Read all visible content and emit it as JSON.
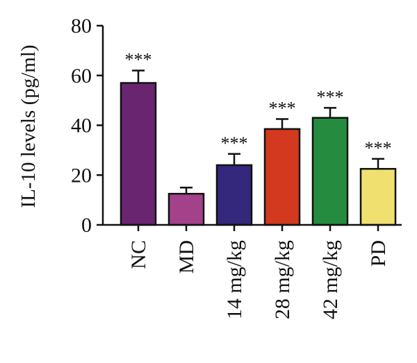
{
  "chart_data": {
    "type": "bar",
    "title": "",
    "xlabel": "",
    "ylabel": "IL-10 levels (pg/ml)",
    "ylim": [
      0,
      80
    ],
    "yticks": [
      0,
      20,
      40,
      60,
      80
    ],
    "categories": [
      "NC",
      "MD",
      "14 mg/kg",
      "28 mg/kg",
      "42 mg/kg",
      "PD"
    ],
    "values": [
      57,
      12.5,
      24,
      38.5,
      43,
      22.5
    ],
    "errors": [
      5,
      2.5,
      4.5,
      4,
      4,
      4
    ],
    "annotations": [
      "***",
      "",
      "***",
      "***",
      "***",
      "***"
    ],
    "colors": [
      "#6a2570",
      "#a3428b",
      "#33287b",
      "#d2391e",
      "#248b3f",
      "#f0e070"
    ],
    "grid": false,
    "legend": "none"
  }
}
